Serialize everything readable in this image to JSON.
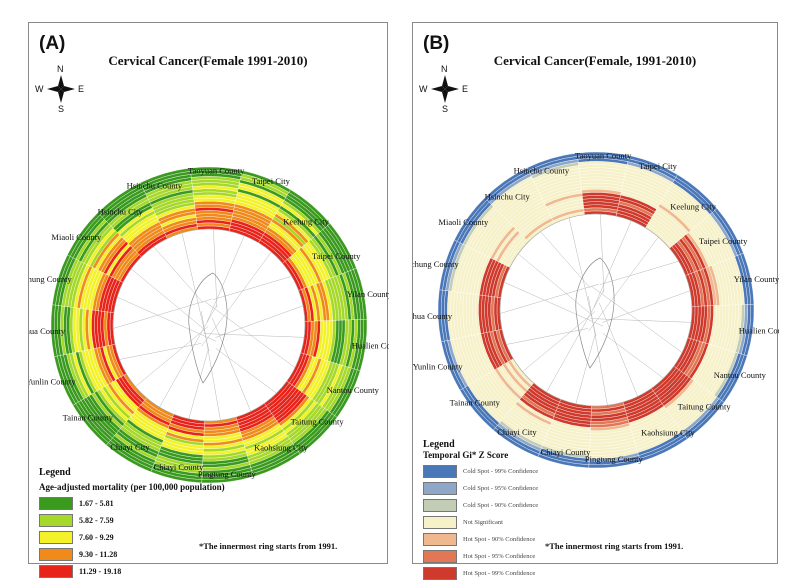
{
  "panels": [
    {
      "label": "(A)",
      "title": "Cervical Cancer(Female 1991-2010)",
      "compass": {
        "n": "N",
        "s": "S",
        "e": "E",
        "w": "W"
      },
      "counties": [
        "Hsinchu County",
        "Taoyuan County",
        "Taipei City",
        "Keelung City",
        "Taipei County",
        "Yilan County",
        "Hualien County",
        "Nantou County",
        "Taitung County",
        "Kaohsiung City",
        "Pingtung County",
        "Chiayi County",
        "Chiayi City",
        "Tainan County",
        "Yunlin County",
        "Changhua County",
        "Taichung County",
        "Miaoli County",
        "Hsinchu City"
      ],
      "legend": {
        "title": "Legend",
        "subtitle": "Age-adjusted mortality  (per 100,000 population)",
        "items": [
          {
            "label": "1.67 - 5.81",
            "color": "#3a9a1e"
          },
          {
            "label": "5.82 - 7.59",
            "color": "#a6d82a"
          },
          {
            "label": "7.60 - 9.29",
            "color": "#f3f22a"
          },
          {
            "label": "9.30 - 11.28",
            "color": "#f08a1a"
          },
          {
            "label": "11.29 - 19.18",
            "color": "#e8231a"
          }
        ]
      },
      "note": "*The innermost ring  starts from 1991."
    },
    {
      "label": "(B)",
      "title": "Cervical Cancer(Female, 1991-2010)",
      "compass": {
        "n": "N",
        "s": "S",
        "e": "E",
        "w": "W"
      },
      "counties": [
        "Hsinchu County",
        "Taoyuan County",
        "Taipei City",
        "Keelung City",
        "Taipei County",
        "Yilan County",
        "Hualien County",
        "Nantou County",
        "Taitung County",
        "Kaohsiung City",
        "Pingtung County",
        "Chiayi County",
        "Chiayi City",
        "Tainan County",
        "Yunlin County",
        "Changhua County",
        "Taichung County",
        "Miaoli County",
        "Hsinchu City"
      ],
      "legend": {
        "title": "Legend",
        "subtitle": "Temporal Gi* Z Score",
        "items": [
          {
            "label": "Cold Spot - 99% Confidence",
            "color": "#4a77b8"
          },
          {
            "label": "Cold Spot - 95% Confidence",
            "color": "#8ea7c9"
          },
          {
            "label": "Cold Spot - 90% Confidence",
            "color": "#c3cdb6"
          },
          {
            "label": "Not Significant",
            "color": "#f6f1c8"
          },
          {
            "label": "Hot Spot - 90% Confidence",
            "color": "#efb88e"
          },
          {
            "label": "Hot Spot - 95% Confidence",
            "color": "#e27756"
          },
          {
            "label": "Hot Spot - 99% Confidence",
            "color": "#cf3a2c"
          }
        ]
      },
      "note": "*The innermost ring  starts from 1991."
    }
  ]
}
